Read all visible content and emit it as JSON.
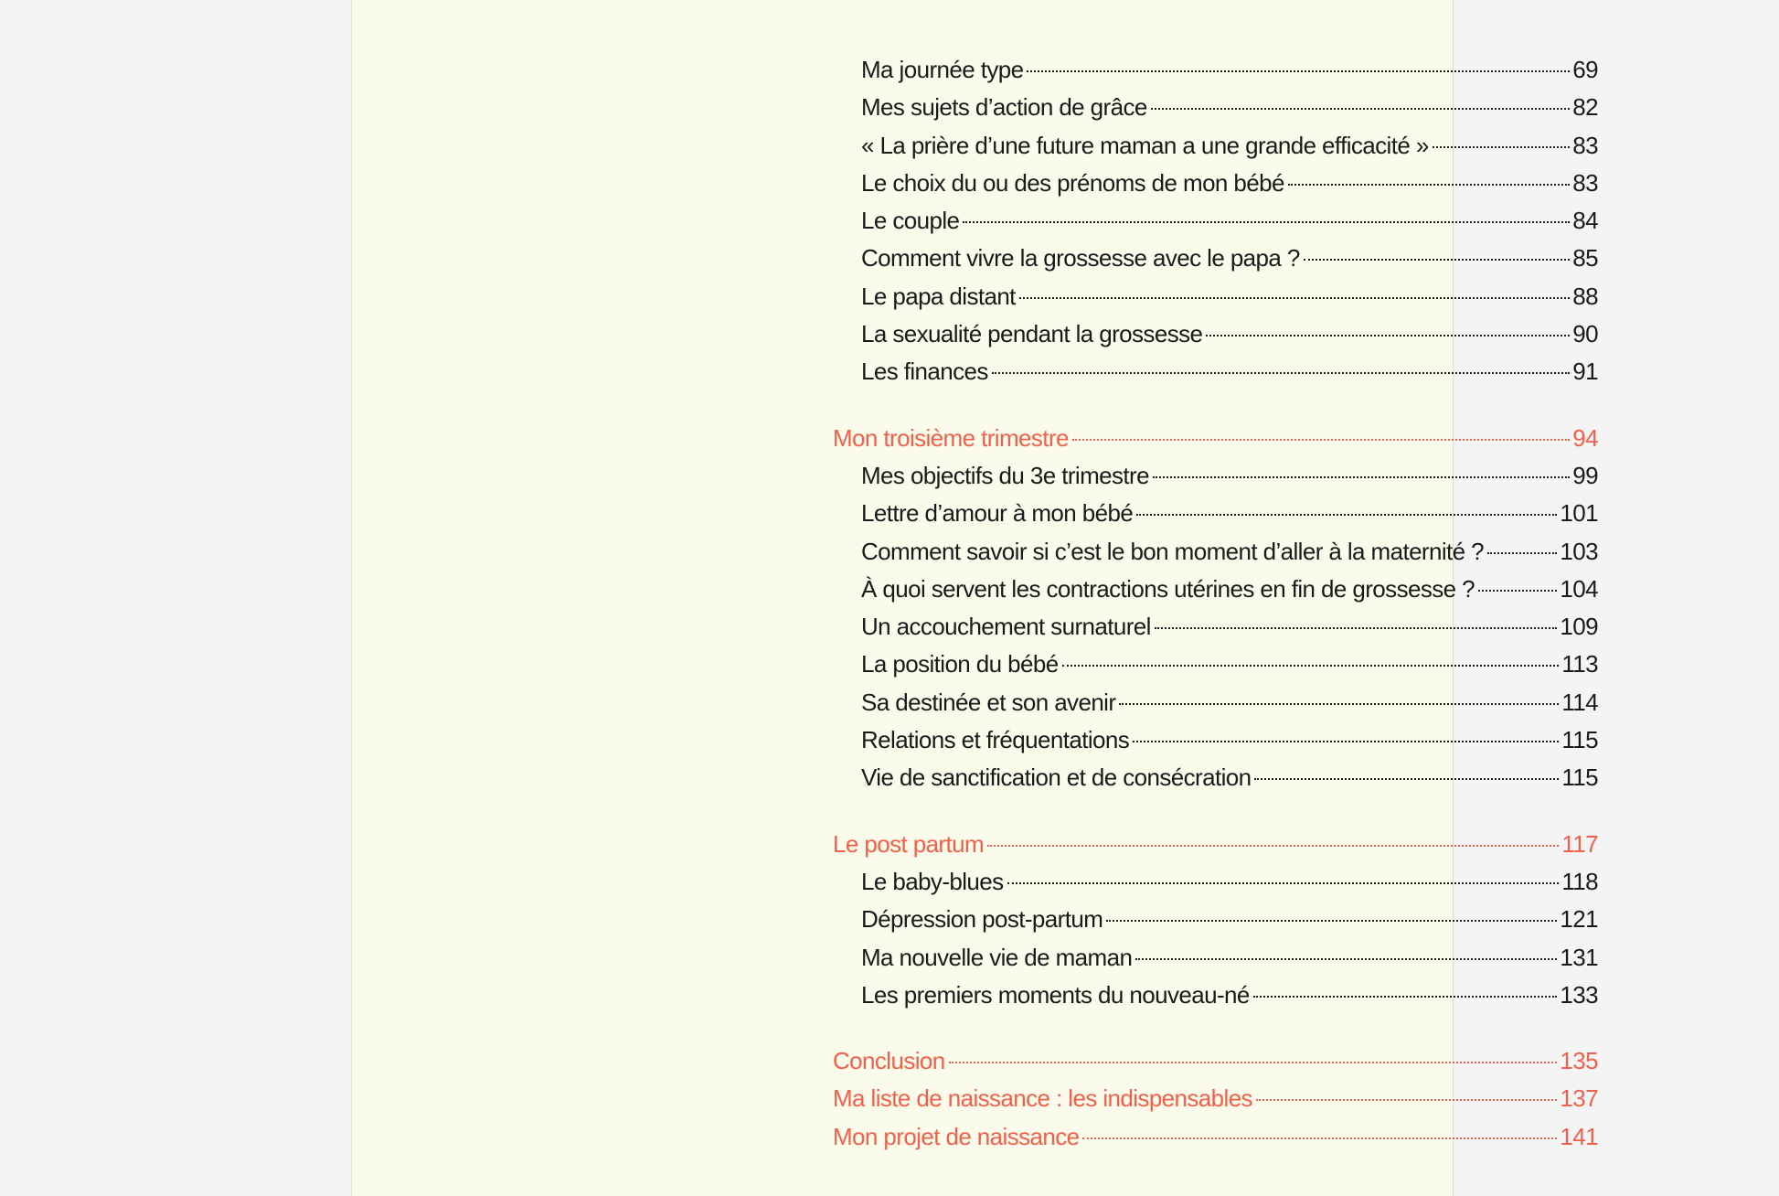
{
  "colors": {
    "heading": "#f0604a",
    "text": "#1a1a1a",
    "page": "#fafbeb",
    "background": "#f4f4f4"
  },
  "toc": [
    {
      "items": [
        {
          "title": "Ma journée type",
          "page": "69",
          "level": "sub"
        },
        {
          "title": "Mes sujets d’action de grâce",
          "page": "82",
          "level": "sub"
        },
        {
          "title": "« La prière d’une future maman a une grande efficacité »",
          "page": "83",
          "level": "sub"
        },
        {
          "title": "Le choix du ou des prénoms de mon bébé",
          "page": "83",
          "level": "sub"
        },
        {
          "title": "Le couple",
          "page": "84",
          "level": "sub"
        },
        {
          "title": "Comment vivre la grossesse avec le papa ?",
          "page": "85",
          "level": "sub"
        },
        {
          "title": "Le papa distant",
          "page": "88",
          "level": "sub"
        },
        {
          "title": "La sexualité pendant la grossesse",
          "page": "90",
          "level": "sub"
        },
        {
          "title": "Les finances",
          "page": "91",
          "level": "sub"
        }
      ]
    },
    {
      "items": [
        {
          "title": "Mon troisième trimestre",
          "page": "94",
          "level": "head"
        },
        {
          "title": "Mes objectifs du 3e trimestre",
          "page": "99",
          "level": "sub"
        },
        {
          "title": "Lettre d’amour à mon bébé",
          "page": "101",
          "level": "sub"
        },
        {
          "title": "Comment savoir si c’est le bon moment d’aller à la maternité ?",
          "page": "103",
          "level": "sub"
        },
        {
          "title": "À quoi servent les contractions utérines en fin de grossesse ?",
          "page": "104",
          "level": "sub"
        },
        {
          "title": "Un accouchement surnaturel",
          "page": "109",
          "level": "sub"
        },
        {
          "title": "La position du bébé",
          "page": "113",
          "level": "sub"
        },
        {
          "title": "Sa destinée et son avenir",
          "page": "114",
          "level": "sub"
        },
        {
          "title": "Relations et fréquentations",
          "page": "115",
          "level": "sub"
        },
        {
          "title": "Vie de sanctification et de consécration",
          "page": "115",
          "level": "sub"
        }
      ]
    },
    {
      "items": [
        {
          "title": "Le post partum",
          "page": "117",
          "level": "head"
        },
        {
          "title": "Le baby-blues",
          "page": "118",
          "level": "sub"
        },
        {
          "title": "Dépression post-partum",
          "page": "121",
          "level": "sub"
        },
        {
          "title": "Ma nouvelle vie de maman",
          "page": "131",
          "level": "sub"
        },
        {
          "title": "Les premiers moments du nouveau-né",
          "page": "133",
          "level": "sub"
        }
      ]
    },
    {
      "items": [
        {
          "title": "Conclusion",
          "page": "135",
          "level": "head"
        },
        {
          "title": "Ma liste de naissance : les indispensables",
          "page": "137",
          "level": "head"
        },
        {
          "title": "Mon projet de naissance",
          "page": "141",
          "level": "head"
        }
      ]
    }
  ]
}
